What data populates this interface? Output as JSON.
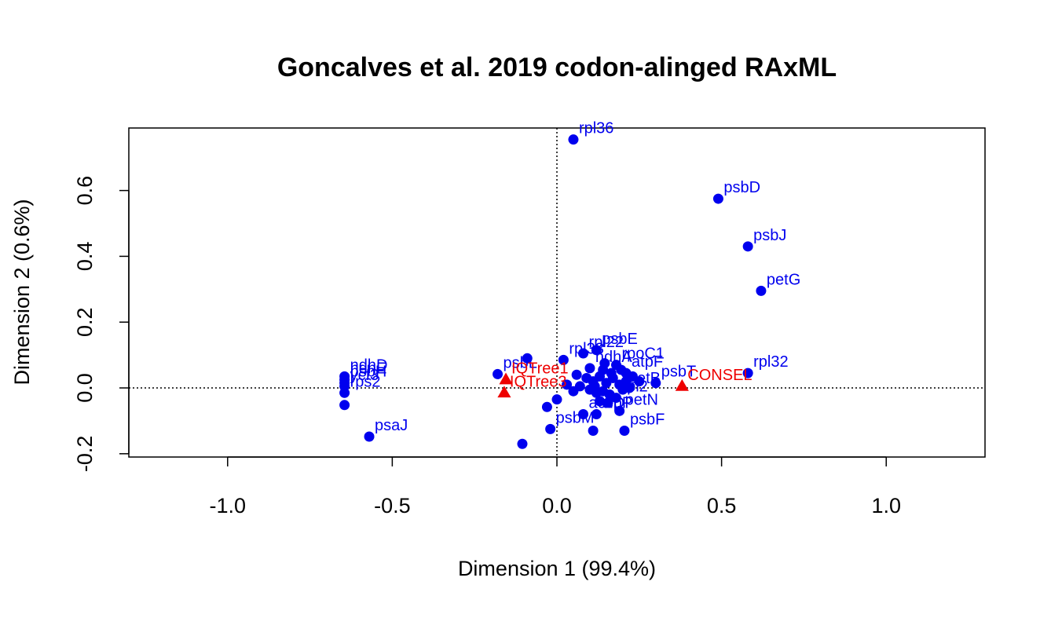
{
  "chart_data": {
    "type": "scatter",
    "title": "Goncalves et al. 2019 codon-alinged RAxML",
    "xlabel": "Dimension 1 (99.4%)",
    "ylabel": "Dimension 2 (0.6%)",
    "xlim": [
      -1.3,
      1.3
    ],
    "ylim": [
      -0.21,
      0.79
    ],
    "x_ticks": [
      -1.0,
      -0.5,
      0.0,
      0.5,
      1.0
    ],
    "x_tick_labels": [
      "-1.0",
      "-0.5",
      "0.0",
      "0.5",
      "1.0"
    ],
    "y_ticks": [
      -0.2,
      0.0,
      0.2,
      0.4,
      0.6
    ],
    "y_tick_labels": [
      "-0.2",
      "0.0",
      "0.2",
      "0.4",
      "0.6"
    ],
    "reference_lines": {
      "x": 0,
      "y": 0,
      "style": "dotted"
    },
    "grid": false,
    "colors": {
      "genes": "#0000ee",
      "methods": "#ee0000",
      "axis": "#000000"
    },
    "series": [
      {
        "marker": "circle",
        "color": "#0000ee",
        "points": [
          {
            "x": 0.05,
            "y": 0.755,
            "label": "rpl36"
          },
          {
            "x": 0.49,
            "y": 0.575,
            "label": "psbD"
          },
          {
            "x": 0.58,
            "y": 0.43,
            "label": "psbJ"
          },
          {
            "x": 0.62,
            "y": 0.295,
            "label": "petG"
          },
          {
            "x": 0.58,
            "y": 0.045,
            "label": "rpl32"
          },
          {
            "x": 0.3,
            "y": 0.015,
            "label": "psbT"
          },
          {
            "x": 0.02,
            "y": 0.085,
            "label": "rpl33"
          },
          {
            "x": 0.08,
            "y": 0.105,
            "label": "rpl22"
          },
          {
            "x": 0.12,
            "y": 0.115,
            "label": "psbE"
          },
          {
            "x": -0.09,
            "y": 0.09,
            "label": ""
          },
          {
            "x": -0.18,
            "y": 0.042,
            "label": "psbL"
          },
          {
            "x": -0.57,
            "y": -0.148,
            "label": "psaJ"
          },
          {
            "x": -0.645,
            "y": 0.035,
            "label": "ndhD"
          },
          {
            "x": -0.645,
            "y": 0.025,
            "label": "ndhE"
          },
          {
            "x": -0.645,
            "y": 0.015,
            "label": "psbH"
          },
          {
            "x": -0.645,
            "y": 0.005,
            "label": "ycf3"
          },
          {
            "x": -0.645,
            "y": -0.015,
            "label": "rps2"
          },
          {
            "x": -0.645,
            "y": -0.052,
            "label": ""
          },
          {
            "x": -0.105,
            "y": -0.17,
            "label": ""
          },
          {
            "x": -0.02,
            "y": -0.125,
            "label": "psbM"
          },
          {
            "x": 0.11,
            "y": -0.13,
            "label": ""
          },
          {
            "x": 0.205,
            "y": -0.13,
            "label": "psbF"
          },
          {
            "x": 0.19,
            "y": -0.07,
            "label": "petN"
          },
          {
            "x": 0.08,
            "y": -0.08,
            "label": "accD"
          },
          {
            "x": 0.12,
            "y": -0.08,
            "label": "clpP"
          },
          {
            "x": -0.03,
            "y": -0.058,
            "label": ""
          },
          {
            "x": 0.0,
            "y": -0.035,
            "label": ""
          },
          {
            "x": 0.1,
            "y": 0.06,
            "label": "ndhA"
          },
          {
            "x": 0.14,
            "y": 0.055,
            "label": ""
          },
          {
            "x": 0.18,
            "y": 0.07,
            "label": "rpoC1"
          },
          {
            "x": 0.21,
            "y": 0.045,
            "label": "atpF"
          },
          {
            "x": 0.23,
            "y": 0.035,
            "label": ""
          },
          {
            "x": 0.25,
            "y": 0.02,
            "label": ""
          },
          {
            "x": 0.06,
            "y": 0.04,
            "label": ""
          },
          {
            "x": 0.09,
            "y": 0.03,
            "label": ""
          },
          {
            "x": 0.11,
            "y": 0.02,
            "label": ""
          },
          {
            "x": 0.13,
            "y": 0.035,
            "label": ""
          },
          {
            "x": 0.15,
            "y": 0.015,
            "label": ""
          },
          {
            "x": 0.17,
            "y": 0.03,
            "label": ""
          },
          {
            "x": 0.19,
            "y": 0.01,
            "label": ""
          },
          {
            "x": 0.21,
            "y": 0.02,
            "label": ""
          },
          {
            "x": 0.07,
            "y": 0.005,
            "label": ""
          },
          {
            "x": 0.1,
            "y": -0.005,
            "label": ""
          },
          {
            "x": 0.12,
            "y": -0.015,
            "label": ""
          },
          {
            "x": 0.14,
            "y": -0.01,
            "label": ""
          },
          {
            "x": 0.16,
            "y": -0.02,
            "label": ""
          },
          {
            "x": 0.18,
            "y": -0.03,
            "label": "rpl2"
          },
          {
            "x": 0.2,
            "y": -0.005,
            "label": "petB"
          },
          {
            "x": 0.22,
            "y": 0.0,
            "label": ""
          },
          {
            "x": 0.05,
            "y": -0.01,
            "label": ""
          },
          {
            "x": 0.03,
            "y": 0.01,
            "label": ""
          },
          {
            "x": 0.13,
            "y": -0.04,
            "label": ""
          },
          {
            "x": 0.155,
            "y": -0.045,
            "label": ""
          },
          {
            "x": 0.115,
            "y": 0.005,
            "label": ""
          },
          {
            "x": 0.165,
            "y": 0.045,
            "label": ""
          },
          {
            "x": 0.195,
            "y": 0.055,
            "label": ""
          },
          {
            "x": 0.145,
            "y": 0.075,
            "label": ""
          }
        ]
      },
      {
        "marker": "triangle",
        "color": "#ee0000",
        "points": [
          {
            "x": -0.155,
            "y": 0.025,
            "label": "IQTree1"
          },
          {
            "x": -0.16,
            "y": -0.015,
            "label": "IQTree3"
          },
          {
            "x": 0.38,
            "y": 0.005,
            "label": "CONSEL"
          }
        ]
      }
    ]
  }
}
